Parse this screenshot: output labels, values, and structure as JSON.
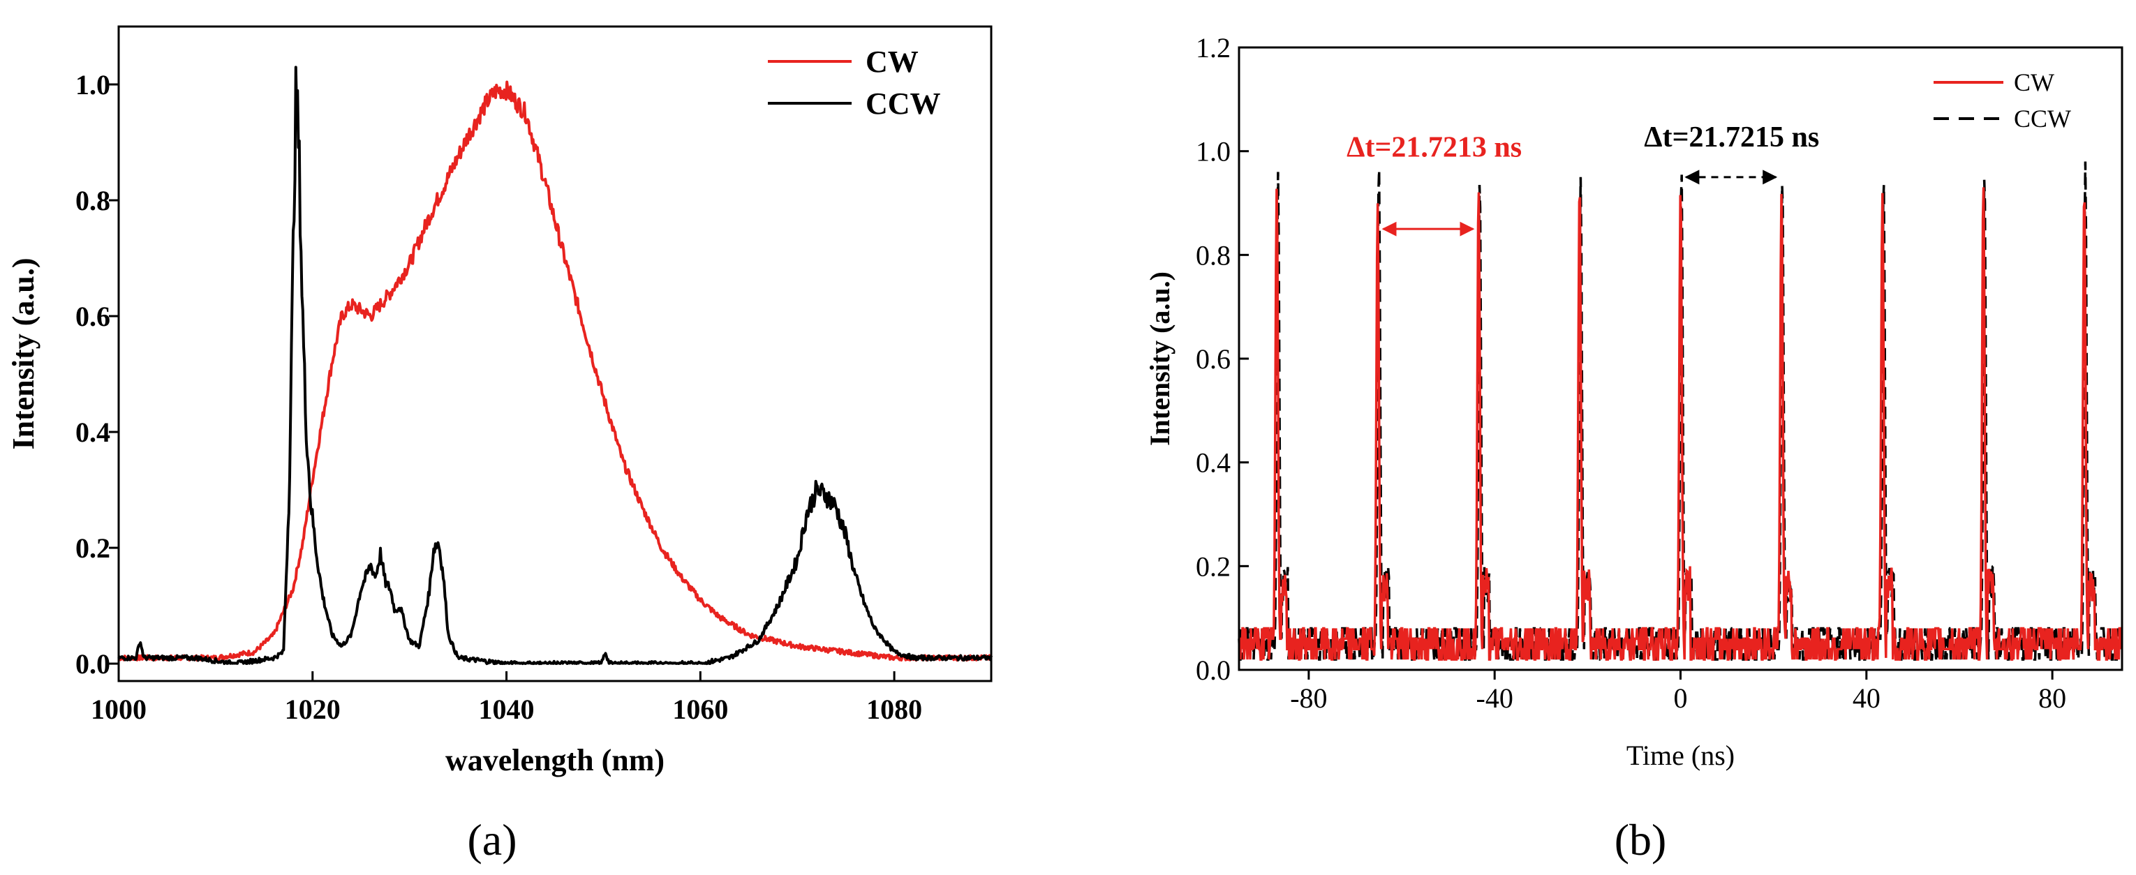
{
  "chart_data": [
    {
      "type": "line",
      "panel_label": "(a)",
      "title": "",
      "xlabel": "wavelength (nm)",
      "ylabel": "Intensity (a.u.)",
      "xlim": [
        1000,
        1090
      ],
      "ylim": [
        -0.03,
        1.1
      ],
      "xticks": [
        1000,
        1020,
        1040,
        1060,
        1080
      ],
      "yticks": [
        0.0,
        0.2,
        0.4,
        0.6,
        0.8,
        1.0
      ],
      "tick_labels_x": [
        "1000",
        "1020",
        "1040",
        "1060",
        "1080"
      ],
      "tick_labels_y": [
        "0.0",
        "0.2",
        "0.4",
        "0.6",
        "0.8",
        "1.0"
      ],
      "legend": {
        "position": "top-right",
        "entries": [
          "CW",
          "CCW"
        ]
      },
      "series": [
        {
          "name": "CW",
          "color": "#e8231f",
          "style": "solid",
          "x": [
            1000,
            1005,
            1010,
            1014,
            1016,
            1018,
            1019,
            1020,
            1021,
            1022,
            1023,
            1024,
            1026,
            1028,
            1030,
            1032,
            1034,
            1036,
            1038,
            1039,
            1040,
            1042,
            1044,
            1046,
            1048,
            1050,
            1052,
            1054,
            1056,
            1058,
            1060,
            1062,
            1065,
            1070,
            1075,
            1080,
            1085,
            1090
          ],
          "y": [
            0.01,
            0.01,
            0.01,
            0.02,
            0.05,
            0.13,
            0.21,
            0.32,
            0.42,
            0.52,
            0.6,
            0.62,
            0.6,
            0.64,
            0.69,
            0.77,
            0.84,
            0.91,
            0.97,
            0.99,
            0.99,
            0.95,
            0.83,
            0.7,
            0.58,
            0.46,
            0.35,
            0.27,
            0.2,
            0.15,
            0.11,
            0.08,
            0.05,
            0.03,
            0.02,
            0.01,
            0.01,
            0.01
          ]
        },
        {
          "name": "CCW",
          "color": "#000000",
          "style": "solid",
          "x": [
            1000,
            1001.8,
            1002.2,
            1002.6,
            1004,
            1008,
            1012,
            1016,
            1017,
            1017.6,
            1018,
            1018.3,
            1018.6,
            1018.9,
            1019.3,
            1019.8,
            1020.4,
            1021,
            1022,
            1023,
            1024,
            1025,
            1026,
            1026.5,
            1027,
            1027.5,
            1028,
            1028.5,
            1029,
            1030,
            1031,
            1032,
            1032.5,
            1033,
            1033.5,
            1034,
            1035,
            1040,
            1045,
            1049.8,
            1050.2,
            1050.6,
            1055,
            1060,
            1063,
            1066,
            1068,
            1070,
            1071,
            1072,
            1073,
            1074,
            1075,
            1076,
            1077,
            1078,
            1080,
            1082,
            1085,
            1090
          ],
          "y": [
            0.01,
            0.01,
            0.04,
            0.01,
            0.01,
            0.01,
            0.0,
            0.01,
            0.02,
            0.3,
            0.72,
            1.0,
            0.88,
            0.65,
            0.42,
            0.28,
            0.19,
            0.12,
            0.05,
            0.03,
            0.05,
            0.13,
            0.17,
            0.15,
            0.19,
            0.14,
            0.13,
            0.09,
            0.1,
            0.04,
            0.03,
            0.12,
            0.2,
            0.21,
            0.15,
            0.05,
            0.01,
            0.0,
            0.0,
            0.0,
            0.02,
            0.0,
            0.0,
            0.0,
            0.01,
            0.04,
            0.1,
            0.18,
            0.26,
            0.3,
            0.29,
            0.27,
            0.22,
            0.15,
            0.1,
            0.06,
            0.02,
            0.01,
            0.01,
            0.01
          ]
        }
      ]
    },
    {
      "type": "line",
      "panel_label": "(b)",
      "title": "",
      "xlabel": "Time (ns)",
      "ylabel": "Intensity (a.u.)",
      "xlim": [
        -95,
        95
      ],
      "ylim": [
        0.0,
        1.2
      ],
      "xticks": [
        -80,
        -40,
        0,
        40,
        80
      ],
      "yticks": [
        0.0,
        0.2,
        0.4,
        0.6,
        0.8,
        1.0,
        1.2
      ],
      "tick_labels_x": [
        "-80",
        "-40",
        "0",
        "40",
        "80"
      ],
      "tick_labels_y": [
        "0.0",
        "0.2",
        "0.4",
        "0.6",
        "0.8",
        "1.0",
        "1.2"
      ],
      "legend": {
        "position": "top-right",
        "entries": [
          "CW",
          "CCW"
        ]
      },
      "pulse_centers_cw": [
        -86.88,
        -65.16,
        -43.44,
        -21.72,
        0.0,
        21.72,
        43.44,
        65.16,
        86.88
      ],
      "pulse_peaks_cw": [
        0.93,
        0.9,
        0.93,
        0.94,
        0.93,
        0.92,
        0.92,
        0.94,
        0.93
      ],
      "pulse_centers_ccw": [
        -86.6,
        -64.9,
        -43.2,
        -21.5,
        0.2,
        21.9,
        43.7,
        65.4,
        87.1
      ],
      "pulse_peaks_ccw": [
        0.96,
        0.98,
        0.95,
        0.95,
        0.97,
        0.95,
        0.95,
        0.96,
        0.98
      ],
      "baseline": 0.05,
      "annotations": [
        {
          "text": "Δt=21.7213 ns",
          "color": "#e8231f",
          "from": -65.16,
          "to": -43.44,
          "y": 0.85,
          "arrow_style": "solid"
        },
        {
          "text": "Δt=21.7215 ns",
          "color": "#000000",
          "from": 0.0,
          "to": 21.72,
          "y": 0.95,
          "arrow_style": "dashed"
        }
      ],
      "series": [
        {
          "name": "CW",
          "color": "#e8231f",
          "style": "solid"
        },
        {
          "name": "CCW",
          "color": "#000000",
          "style": "dashed"
        }
      ]
    }
  ]
}
